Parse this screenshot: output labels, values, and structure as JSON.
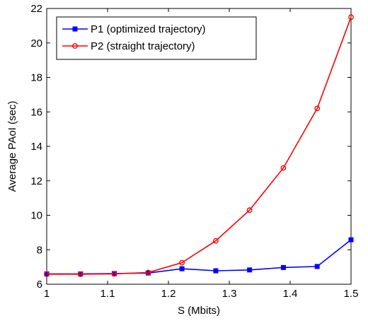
{
  "chart_data": {
    "type": "line",
    "xlabel": "S (Mbits)",
    "ylabel": "Average PAoI (sec)",
    "xlim": [
      1,
      1.5
    ],
    "ylim": [
      6,
      22
    ],
    "xticks": [
      1,
      1.1,
      1.2,
      1.3,
      1.4,
      1.5
    ],
    "xtick_labels": [
      "1",
      "1.1",
      "1.2",
      "1.3",
      "1.4",
      "1.5"
    ],
    "yticks": [
      6,
      8,
      10,
      12,
      14,
      16,
      18,
      20,
      22
    ],
    "ytick_labels": [
      "6",
      "8",
      "10",
      "12",
      "14",
      "16",
      "18",
      "20",
      "22"
    ],
    "grid": false,
    "legend_position": "top-left",
    "x": [
      1.0,
      1.0556,
      1.1111,
      1.1667,
      1.2222,
      1.2778,
      1.3333,
      1.3889,
      1.4444,
      1.5
    ],
    "series": [
      {
        "name": "P1 (optimized trajectory)",
        "color": "#0000ff",
        "marker": "square",
        "values": [
          6.6,
          6.6,
          6.62,
          6.65,
          6.9,
          6.78,
          6.83,
          6.97,
          7.03,
          8.58
        ]
      },
      {
        "name": "P2 (straight trajectory)",
        "color": "#ff0000",
        "marker": "circle",
        "values": [
          6.58,
          6.58,
          6.6,
          6.68,
          7.25,
          8.52,
          10.3,
          12.75,
          16.2,
          21.5
        ]
      }
    ]
  }
}
